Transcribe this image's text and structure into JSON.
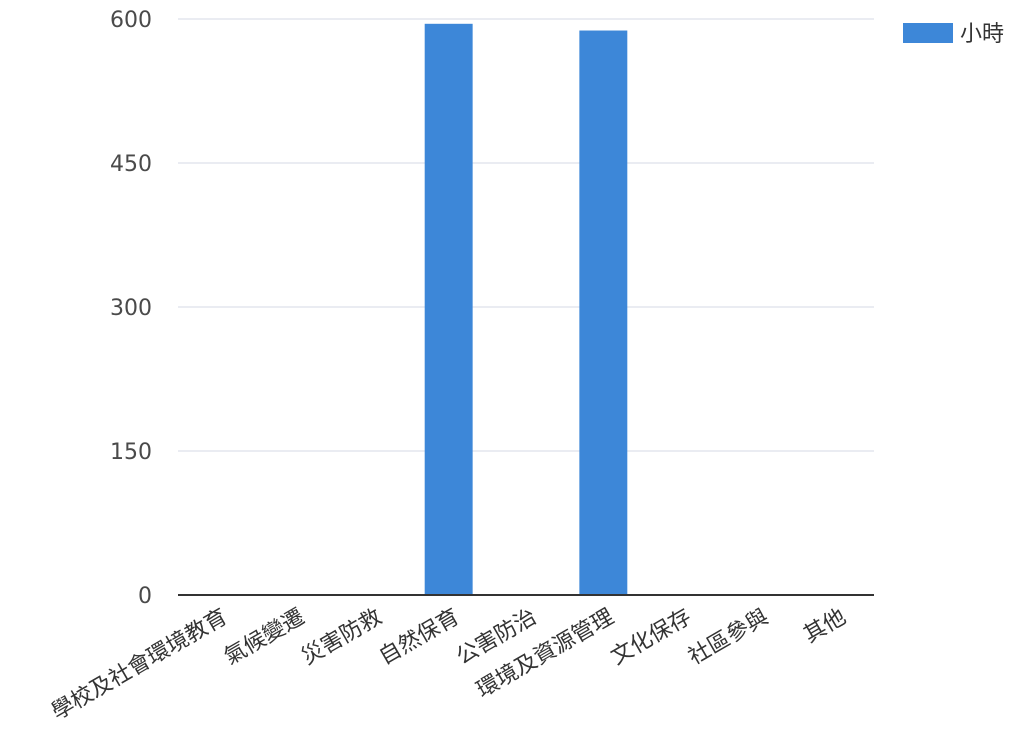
{
  "chart_data": {
    "type": "bar",
    "categories": [
      "學校及社會環境教育",
      "氣候變遷",
      "災害防救",
      "自然保育",
      "公害防治",
      "環境及資源管理",
      "文化保存",
      "社區參與",
      "其他"
    ],
    "series": [
      {
        "name": "小時",
        "values": [
          0,
          0,
          0,
          595,
          0,
          588,
          0,
          0,
          0
        ],
        "color": "#3d87d8"
      }
    ],
    "yticks": [
      "600",
      "450",
      "300",
      "150",
      "0"
    ],
    "ylim": [
      0,
      600
    ],
    "grid": true,
    "legend_position": "top-right",
    "title": "",
    "xlabel": "",
    "ylabel": ""
  }
}
